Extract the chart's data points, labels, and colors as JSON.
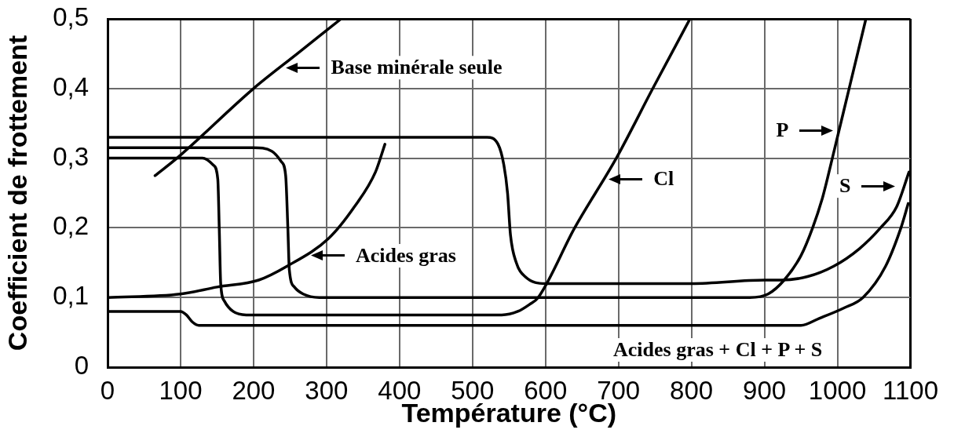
{
  "chart_data": {
    "type": "line",
    "xlabel": "Température (°C)",
    "ylabel": "Coefficient de frottement",
    "xlim": [
      0,
      1100
    ],
    "xticks": [
      0,
      100,
      200,
      300,
      400,
      500,
      600,
      700,
      800,
      900,
      1000,
      1100
    ],
    "ylim": [
      0,
      0.5
    ],
    "yticks": [
      0,
      {
        "value": 0.1,
        "label": "0,1"
      },
      {
        "value": 0.2,
        "label": "0,2"
      },
      {
        "value": 0.3,
        "label": "0,3"
      },
      {
        "value": 0.4,
        "label": "0,4"
      },
      {
        "value": 0.5,
        "label": "0,5"
      }
    ],
    "grid": true,
    "series": [
      {
        "color": "#000000",
        "x": [
          65,
          95,
          200,
          260,
          320
        ],
        "values": [
          0.275,
          0.3,
          0.4,
          0.45,
          0.5
        ]
      },
      {
        "color": "#000000",
        "x": [
          0,
          250,
          400,
          520,
          535,
          543,
          548,
          552,
          560,
          572,
          600,
          700,
          800,
          900,
          923,
          959,
          995,
          1030,
          1059,
          1081,
          1098
        ],
        "values": [
          0.33,
          0.33,
          0.33,
          0.33,
          0.32,
          0.29,
          0.25,
          0.19,
          0.15,
          0.13,
          0.12,
          0.12,
          0.12,
          0.125,
          0.125,
          0.13,
          0.145,
          0.17,
          0.2,
          0.23,
          0.28
        ]
      },
      {
        "color": "#000000",
        "x": [
          0,
          200,
          225,
          238,
          244,
          247,
          249,
          256,
          268,
          290,
          600,
          880,
          905,
          927,
          950,
          966,
          980,
          993,
          1016,
          1039
        ],
        "values": [
          0.315,
          0.315,
          0.31,
          0.295,
          0.275,
          0.2,
          0.14,
          0.115,
          0.105,
          0.1,
          0.1,
          0.1,
          0.105,
          0.125,
          0.16,
          0.2,
          0.245,
          0.3,
          0.4,
          0.5
        ]
      },
      {
        "color": "#000000",
        "x": [
          0,
          130,
          145,
          151,
          153,
          155,
          160,
          172,
          190,
          540,
          562,
          578,
          590,
          640,
          697,
          747,
          798
        ],
        "values": [
          0.3,
          0.3,
          0.29,
          0.27,
          0.2,
          0.12,
          0.095,
          0.08,
          0.075,
          0.075,
          0.08,
          0.09,
          0.1,
          0.2,
          0.3,
          0.4,
          0.5
        ]
      },
      {
        "color": "#000000",
        "x": [
          0,
          100,
          150,
          207,
          246,
          303,
          338,
          367,
          380
        ],
        "values": [
          0.1,
          0.105,
          0.115,
          0.125,
          0.145,
          0.185,
          0.23,
          0.28,
          0.32
        ]
      },
      {
        "color": "#000000",
        "x": [
          0,
          100,
          108,
          116,
          125,
          500,
          900,
          950,
          975,
          1009,
          1035,
          1066,
          1087,
          1097
        ],
        "values": [
          0.08,
          0.08,
          0.075,
          0.065,
          0.06,
          0.06,
          0.06,
          0.06,
          0.07,
          0.085,
          0.1,
          0.145,
          0.2,
          0.235
        ]
      }
    ],
    "annotations": [
      {
        "text": "Base minérale seule",
        "x": 236,
        "y": 0.43
      },
      {
        "text": "Acides gras",
        "x": 270,
        "y": 0.16
      },
      {
        "text": "Cl",
        "x": 678,
        "y": 0.27
      },
      {
        "text": "P",
        "x": 1003,
        "y": 0.34
      },
      {
        "text": "S",
        "x": 1088,
        "y": 0.26
      },
      "Acides gras + Cl + P + S"
    ]
  }
}
